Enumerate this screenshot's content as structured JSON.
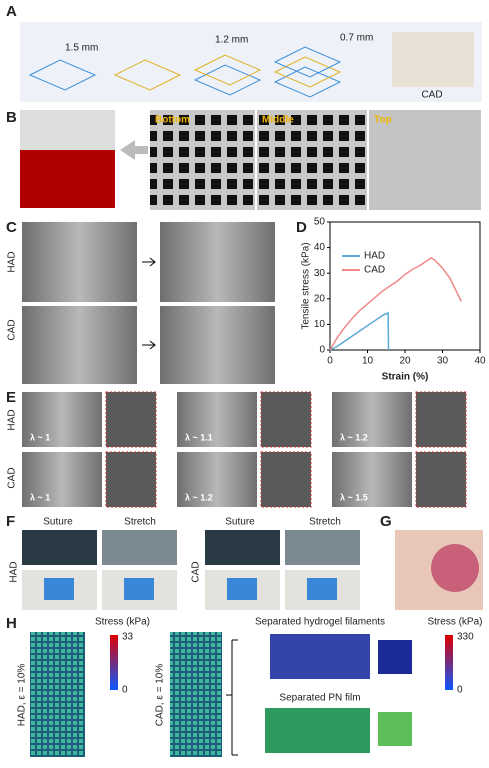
{
  "figure": {
    "a": {
      "label": "A",
      "dims": [
        "1.5 mm",
        "1.2 mm",
        "0.7 mm"
      ],
      "product": "CAD"
    },
    "b": {
      "label": "B",
      "layers": [
        "Bottom",
        "Middle",
        "Top"
      ]
    },
    "c": {
      "label": "C",
      "rows": [
        "HAD",
        "CAD"
      ]
    },
    "d": {
      "label": "D"
    },
    "e": {
      "label": "E",
      "rows": [
        "HAD",
        "CAD"
      ],
      "had_lambda": [
        "λ ~ 1",
        "λ ~ 1.1",
        "λ ~ 1.2"
      ],
      "cad_lambda": [
        "λ ~ 1",
        "λ ~ 1.2",
        "λ ~ 1.5"
      ]
    },
    "f": {
      "label": "F",
      "steps": [
        "Suture",
        "Stretch",
        "Suture",
        "Stretch"
      ],
      "rows": [
        "HAD",
        "CAD"
      ]
    },
    "g": {
      "label": "G"
    },
    "h": {
      "label": "H",
      "stress_label": "Stress (kPa)",
      "scale1": [
        33,
        0
      ],
      "had": "HAD, ε = 10%",
      "cad": "CAD, ε = 10%",
      "filaments": "Separated hydrogel filaments",
      "film": "Separated PN film",
      "scale2": [
        330,
        0
      ]
    }
  },
  "chart_data": {
    "type": "line",
    "xlabel": "Strain (%)",
    "ylabel": "Tensile stress (kPa)",
    "xlim": [
      0,
      40
    ],
    "xticks": [
      0,
      10,
      20,
      30,
      40
    ],
    "ylim": [
      0,
      50
    ],
    "yticks": [
      0,
      10,
      20,
      30,
      40,
      50
    ],
    "series": [
      {
        "name": "HAD",
        "color": "#5aa9d6",
        "x": [
          0,
          2,
          4,
          6,
          8,
          10,
          12,
          14,
          15.5,
          15.6
        ],
        "values": [
          0,
          1.5,
          3.5,
          5.5,
          7.5,
          9.5,
          11.5,
          13.5,
          14.5,
          0
        ]
      },
      {
        "name": "CAD",
        "color": "#f08a8a",
        "x": [
          0,
          2,
          4,
          6,
          8,
          10,
          12,
          14,
          16,
          18,
          20,
          22,
          24,
          26,
          27,
          28,
          30,
          32,
          34,
          35
        ],
        "values": [
          0,
          5,
          9,
          12.5,
          15.5,
          18,
          20.5,
          23,
          25,
          27,
          29.5,
          31.5,
          33,
          35,
          36,
          35,
          32,
          28,
          22,
          19
        ]
      }
    ]
  }
}
